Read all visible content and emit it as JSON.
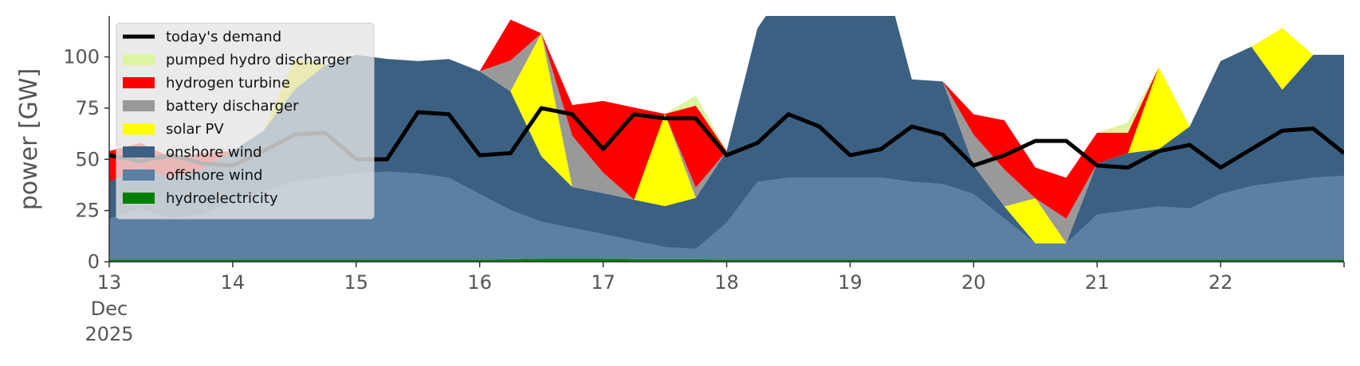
{
  "chart_data": {
    "type": "area",
    "ylabel": "power [GW]",
    "xlabel": "",
    "ylim": [
      0,
      120
    ],
    "xlim_days": [
      13,
      23
    ],
    "grid": false,
    "legend_position": "top-left",
    "x_ticks": [
      {
        "day": 13,
        "label": "13"
      },
      {
        "day": 14,
        "label": "14"
      },
      {
        "day": 15,
        "label": "15"
      },
      {
        "day": 16,
        "label": "16"
      },
      {
        "day": 17,
        "label": "17"
      },
      {
        "day": 18,
        "label": "18"
      },
      {
        "day": 19,
        "label": "19"
      },
      {
        "day": 20,
        "label": "20"
      },
      {
        "day": 21,
        "label": "21"
      },
      {
        "day": 22,
        "label": "22"
      }
    ],
    "x_tick_sublabels": [
      "Dec",
      "2025"
    ],
    "y_ticks": [
      0,
      25,
      50,
      75,
      100
    ],
    "x": [
      13.0,
      13.25,
      13.5,
      13.75,
      14.0,
      14.25,
      14.5,
      14.75,
      15.0,
      15.25,
      15.5,
      15.75,
      16.0,
      16.25,
      16.5,
      16.75,
      17.0,
      17.25,
      17.5,
      17.75,
      18.0,
      18.25,
      18.5,
      18.75,
      19.0,
      19.25,
      19.5,
      19.75,
      20.0,
      20.25,
      20.5,
      20.75,
      21.0,
      21.25,
      21.5,
      21.75,
      22.0,
      22.25,
      22.5,
      22.75,
      23.0
    ],
    "series": [
      {
        "name": "hydroelectricity",
        "color": "#008000",
        "values": [
          1.0,
          1.0,
          1.0,
          1.0,
          1.0,
          1.0,
          1.0,
          1.0,
          1.0,
          1.0,
          1.0,
          1.0,
          1.0,
          1.2,
          1.5,
          1.5,
          1.5,
          1.3,
          1.2,
          1.2,
          1.0,
          1.0,
          1.0,
          1.0,
          1.0,
          1.0,
          1.0,
          1.0,
          1.0,
          1.0,
          1.0,
          1.0,
          1.0,
          1.0,
          1.0,
          1.0,
          1.0,
          1.0,
          1.0,
          1.0,
          1.0
        ]
      },
      {
        "name": "offshore wind",
        "color": "#5b80a4",
        "values": [
          20,
          25,
          20,
          22,
          28,
          33,
          38,
          40,
          42,
          43,
          42,
          40,
          32,
          24,
          18,
          15,
          12,
          9,
          6,
          5,
          18,
          38,
          40,
          40,
          40,
          40,
          38,
          37,
          32,
          20,
          8,
          8,
          22,
          24,
          26,
          25,
          32,
          36,
          38,
          40,
          41
        ]
      },
      {
        "name": "onshore wind",
        "color": "#3b6082",
        "values": [
          18,
          20,
          20,
          22,
          25,
          30,
          45,
          55,
          58,
          55,
          55,
          58,
          60,
          58,
          32,
          20,
          20,
          20,
          20,
          25,
          35,
          75,
          95,
          105,
          110,
          105,
          50,
          50,
          14,
          6,
          0,
          0,
          25,
          28,
          28,
          40,
          65,
          68,
          45,
          60,
          59
        ]
      },
      {
        "name": "solar PV",
        "color": "#ffff00",
        "values": [
          0,
          0,
          0,
          0,
          0,
          0,
          15,
          0,
          0,
          0,
          0,
          0,
          0,
          0,
          60,
          0,
          0,
          0,
          45,
          0,
          0,
          0,
          0,
          18,
          0,
          0,
          0,
          0,
          0,
          0,
          22,
          0,
          0,
          0,
          40,
          0,
          0,
          0,
          30,
          0,
          0
        ]
      },
      {
        "name": "battery discharger",
        "color": "#999999",
        "values": [
          0,
          0,
          0,
          0,
          0,
          0,
          0,
          0,
          0,
          0,
          0,
          0,
          0,
          15,
          0,
          25,
          10,
          0,
          0,
          5,
          0,
          0,
          0,
          0,
          0,
          0,
          0,
          0,
          15,
          18,
          0,
          12,
          0,
          0,
          0,
          0,
          0,
          0,
          0,
          0,
          0
        ]
      },
      {
        "name": "hydrogen turbine",
        "color": "#ff0000",
        "values": [
          15,
          12,
          10,
          8,
          0,
          0,
          0,
          0,
          0,
          0,
          0,
          0,
          0,
          20,
          0,
          15,
          35,
          45,
          0,
          40,
          0,
          0,
          0,
          0,
          0,
          0,
          0,
          0,
          10,
          24,
          15,
          20,
          15,
          10,
          0,
          0,
          0,
          0,
          0,
          0,
          0
        ]
      },
      {
        "name": "pumped hydro discharger",
        "color": "#ddf5a0",
        "values": [
          0,
          0,
          0,
          0,
          0,
          0,
          0,
          0,
          0,
          0,
          0,
          0,
          0,
          0,
          0,
          0,
          0,
          0,
          0,
          5,
          0,
          0,
          0,
          0,
          0,
          0,
          0,
          0,
          0,
          0,
          0,
          0,
          0,
          5,
          0,
          0,
          0,
          0,
          0,
          0,
          0
        ]
      }
    ],
    "demand": {
      "name": "today's demand",
      "color": "#000000",
      "values": [
        52,
        49,
        52,
        48,
        47,
        54,
        62,
        63,
        50,
        50,
        73,
        72,
        52,
        53,
        75,
        72,
        55,
        72,
        70,
        70,
        52,
        58,
        72,
        66,
        52,
        55,
        66,
        62,
        47,
        52,
        59,
        59,
        47,
        46,
        54,
        57,
        46,
        55,
        64,
        65,
        53
      ]
    },
    "legend": [
      {
        "label": "today's demand",
        "color": "#000000",
        "kind": "line"
      },
      {
        "label": "pumped hydro discharger",
        "color": "#ddf5a0",
        "kind": "patch"
      },
      {
        "label": "hydrogen turbine",
        "color": "#ff0000",
        "kind": "patch"
      },
      {
        "label": "battery discharger",
        "color": "#999999",
        "kind": "patch"
      },
      {
        "label": "solar PV",
        "color": "#ffff00",
        "kind": "patch"
      },
      {
        "label": "onshore wind",
        "color": "#3b6082",
        "kind": "patch"
      },
      {
        "label": "offshore wind",
        "color": "#5b80a4",
        "kind": "patch"
      },
      {
        "label": "hydroelectricity",
        "color": "#008000",
        "kind": "patch"
      }
    ]
  }
}
